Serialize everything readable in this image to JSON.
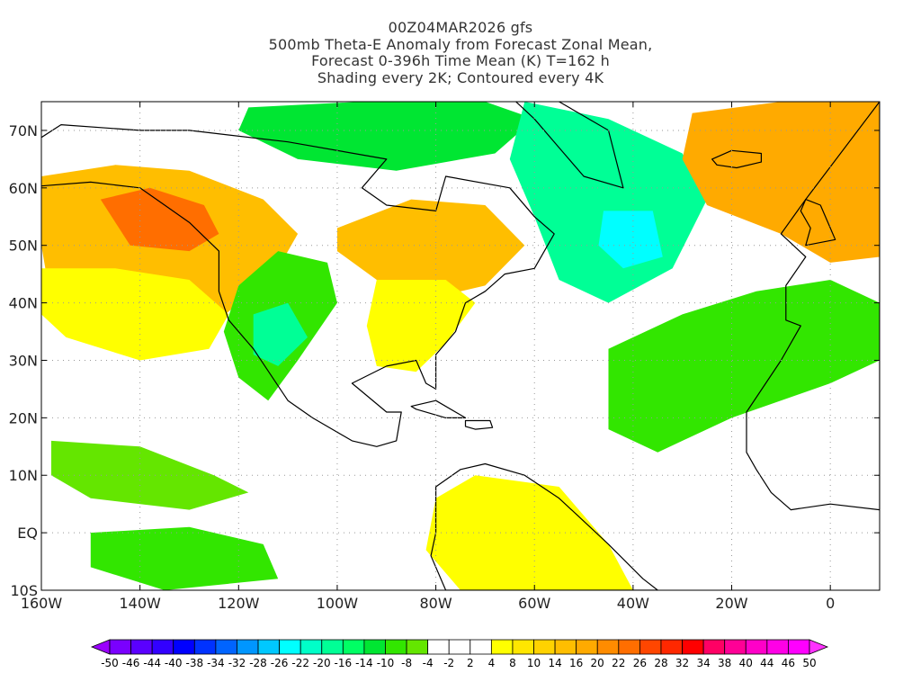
{
  "title": {
    "line1": "00Z04MAR2026 gfs",
    "line2": "500mb Theta-E Anomaly from Forecast Zonal Mean,",
    "line3": "Forecast 0-396h Time Mean (K) T=162 h",
    "line4": "Shading every 2K; Contoured every 4K"
  },
  "map": {
    "projection": "lat-lon",
    "lon_range": [
      -160,
      10
    ],
    "lat_range": [
      -10,
      75
    ],
    "lat_ticks": [
      {
        "lat": 70,
        "label": "70N"
      },
      {
        "lat": 60,
        "label": "60N"
      },
      {
        "lat": 50,
        "label": "50N"
      },
      {
        "lat": 40,
        "label": "40N"
      },
      {
        "lat": 30,
        "label": "30N"
      },
      {
        "lat": 20,
        "label": "20N"
      },
      {
        "lat": 10,
        "label": "10N"
      },
      {
        "lat": 0,
        "label": "EQ"
      },
      {
        "lat": -10,
        "label": "10S"
      }
    ],
    "lon_ticks": [
      {
        "lon": -160,
        "label": "160W"
      },
      {
        "lon": -140,
        "label": "140W"
      },
      {
        "lon": -120,
        "label": "120W"
      },
      {
        "lon": -100,
        "label": "100W"
      },
      {
        "lon": -80,
        "label": "80W"
      },
      {
        "lon": -60,
        "label": "60W"
      },
      {
        "lon": -40,
        "label": "40W"
      },
      {
        "lon": -20,
        "label": "20W"
      },
      {
        "lon": 0,
        "label": "0"
      }
    ],
    "grid": "dotted"
  },
  "colorbar": {
    "labels": [
      "-50",
      "-46",
      "-44",
      "-40",
      "-38",
      "-34",
      "-32",
      "-28",
      "-26",
      "-22",
      "-20",
      "-16",
      "-14",
      "-10",
      "-8",
      "-4",
      "-2",
      "2",
      "4",
      "8",
      "10",
      "14",
      "16",
      "20",
      "22",
      "26",
      "28",
      "32",
      "34",
      "38",
      "40",
      "44",
      "46",
      "50"
    ],
    "colors": [
      "#9a00ff",
      "#7a00ff",
      "#5a00ff",
      "#3200ff",
      "#0000ff",
      "#0032ff",
      "#0064ff",
      "#0096ff",
      "#00c8ff",
      "#00ffff",
      "#00ffc8",
      "#00ff96",
      "#00ff64",
      "#00e632",
      "#32e600",
      "#64e600",
      "#ffffff",
      "#ffffff",
      "#ffffff",
      "#ffff00",
      "#ffe600",
      "#ffd200",
      "#ffbe00",
      "#ffaa00",
      "#ff8c00",
      "#ff6e00",
      "#ff4600",
      "#ff2800",
      "#ff0000",
      "#ff0064",
      "#ff0096",
      "#ff00c8",
      "#ff00e6",
      "#ff00ff",
      "#ff32ff"
    ]
  },
  "anomaly_regions": [
    {
      "name": "ne-pacific-warm",
      "value": 16,
      "color": "#ffbe00",
      "polygon": [
        [
          -160,
          62
        ],
        [
          -145,
          64
        ],
        [
          -130,
          63
        ],
        [
          -115,
          58
        ],
        [
          -108,
          52
        ],
        [
          -112,
          46
        ],
        [
          -120,
          40
        ],
        [
          -128,
          34
        ],
        [
          -145,
          32
        ],
        [
          -158,
          40
        ],
        [
          -160,
          50
        ]
      ]
    },
    {
      "name": "ne-pacific-core",
      "value": 24,
      "color": "#ff6e00",
      "polygon": [
        [
          -148,
          58
        ],
        [
          -138,
          60
        ],
        [
          -127,
          57
        ],
        [
          -124,
          52
        ],
        [
          -130,
          49
        ],
        [
          -142,
          50
        ]
      ]
    },
    {
      "name": "subtropical-pacific-warm",
      "value": 8,
      "color": "#ffff00",
      "polygon": [
        [
          -160,
          46
        ],
        [
          -145,
          46
        ],
        [
          -130,
          44
        ],
        [
          -122,
          38
        ],
        [
          -126,
          32
        ],
        [
          -140,
          30
        ],
        [
          -155,
          34
        ],
        [
          -160,
          38
        ]
      ]
    },
    {
      "name": "arctic-canada-cool",
      "value": -10,
      "color": "#00e632",
      "polygon": [
        [
          -118,
          74
        ],
        [
          -95,
          75
        ],
        [
          -70,
          75
        ],
        [
          -60,
          72
        ],
        [
          -68,
          66
        ],
        [
          -88,
          63
        ],
        [
          -108,
          65
        ],
        [
          -120,
          70
        ]
      ]
    },
    {
      "name": "western-us-cool",
      "value": -12,
      "color": "#32e600",
      "polygon": [
        [
          -120,
          43
        ],
        [
          -112,
          49
        ],
        [
          -102,
          47
        ],
        [
          -100,
          40
        ],
        [
          -108,
          30
        ],
        [
          -114,
          23
        ],
        [
          -120,
          27
        ],
        [
          -123,
          35
        ]
      ]
    },
    {
      "name": "western-us-core",
      "value": -18,
      "color": "#00ff96",
      "polygon": [
        [
          -117,
          38
        ],
        [
          -110,
          40
        ],
        [
          -106,
          34
        ],
        [
          -112,
          29
        ],
        [
          -117,
          31
        ]
      ]
    },
    {
      "name": "eastern-canada-warm",
      "value": 14,
      "color": "#ffbe00",
      "polygon": [
        [
          -100,
          53
        ],
        [
          -85,
          58
        ],
        [
          -70,
          57
        ],
        [
          -62,
          50
        ],
        [
          -70,
          43
        ],
        [
          -80,
          41
        ],
        [
          -92,
          44
        ],
        [
          -100,
          49
        ]
      ]
    },
    {
      "name": "eastern-us-warm",
      "value": 8,
      "color": "#ffff00",
      "polygon": [
        [
          -92,
          44
        ],
        [
          -78,
          44
        ],
        [
          -72,
          40
        ],
        [
          -78,
          33
        ],
        [
          -84,
          28
        ],
        [
          -92,
          29
        ],
        [
          -94,
          36
        ]
      ]
    },
    {
      "name": "north-atlantic-cool",
      "value": -16,
      "color": "#00ff96",
      "polygon": [
        [
          -62,
          75
        ],
        [
          -45,
          72
        ],
        [
          -30,
          66
        ],
        [
          -25,
          58
        ],
        [
          -32,
          46
        ],
        [
          -45,
          40
        ],
        [
          -55,
          44
        ],
        [
          -60,
          55
        ],
        [
          -65,
          65
        ]
      ]
    },
    {
      "name": "north-atlantic-core",
      "value": -22,
      "color": "#00ffff",
      "polygon": [
        [
          -46,
          56
        ],
        [
          -36,
          56
        ],
        [
          -34,
          48
        ],
        [
          -42,
          46
        ],
        [
          -47,
          50
        ]
      ]
    },
    {
      "name": "europe-warm",
      "value": 18,
      "color": "#ffaa00",
      "polygon": [
        [
          -28,
          73
        ],
        [
          -10,
          75
        ],
        [
          10,
          75
        ],
        [
          10,
          48
        ],
        [
          0,
          47
        ],
        [
          -10,
          52
        ],
        [
          -25,
          57
        ],
        [
          -30,
          65
        ]
      ]
    },
    {
      "name": "subtropical-atlantic-cool",
      "value": -8,
      "color": "#32e600",
      "polygon": [
        [
          -45,
          32
        ],
        [
          -30,
          38
        ],
        [
          -15,
          42
        ],
        [
          0,
          44
        ],
        [
          10,
          40
        ],
        [
          10,
          30
        ],
        [
          0,
          26
        ],
        [
          -20,
          20
        ],
        [
          -35,
          14
        ],
        [
          -45,
          18
        ]
      ]
    },
    {
      "name": "tropical-pacific-cool",
      "value": -6,
      "color": "#64e600",
      "polygon": [
        [
          -158,
          16
        ],
        [
          -140,
          15
        ],
        [
          -125,
          10
        ],
        [
          -118,
          7
        ],
        [
          -130,
          4
        ],
        [
          -150,
          6
        ],
        [
          -158,
          10
        ]
      ]
    },
    {
      "name": "south-america-warm",
      "value": 6,
      "color": "#ffff00",
      "polygon": [
        [
          -80,
          6
        ],
        [
          -72,
          10
        ],
        [
          -55,
          8
        ],
        [
          -45,
          -2
        ],
        [
          -40,
          -10
        ],
        [
          -75,
          -10
        ],
        [
          -82,
          -3
        ]
      ]
    },
    {
      "name": "tropical-pacific-south-cool",
      "value": -8,
      "color": "#32e600",
      "polygon": [
        [
          -150,
          0
        ],
        [
          -130,
          1
        ],
        [
          -115,
          -2
        ],
        [
          -112,
          -8
        ],
        [
          -135,
          -10
        ],
        [
          -150,
          -6
        ]
      ]
    }
  ],
  "coastlines": [
    {
      "name": "north-america",
      "polygon": [
        [
          -165,
          60
        ],
        [
          -150,
          61
        ],
        [
          -140,
          60
        ],
        [
          -135,
          57
        ],
        [
          -130,
          54
        ],
        [
          -124,
          49
        ],
        [
          -124,
          42
        ],
        [
          -122,
          37
        ],
        [
          -117,
          32
        ],
        [
          -110,
          23
        ],
        [
          -105,
          20
        ],
        [
          -97,
          16
        ],
        [
          -92,
          15
        ],
        [
          -88,
          16
        ],
        [
          -87,
          21
        ],
        [
          -90,
          21
        ],
        [
          -97,
          26
        ],
        [
          -90,
          29
        ],
        [
          -84,
          30
        ],
        [
          -82,
          26
        ],
        [
          -80,
          25
        ],
        [
          -80,
          31
        ],
        [
          -76,
          35
        ],
        [
          -74,
          40
        ],
        [
          -70,
          42
        ],
        [
          -66,
          45
        ],
        [
          -60,
          46
        ],
        [
          -56,
          52
        ],
        [
          -60,
          55
        ],
        [
          -65,
          60
        ],
        [
          -78,
          62
        ],
        [
          -80,
          56
        ],
        [
          -90,
          57
        ],
        [
          -95,
          60
        ],
        [
          -90,
          65
        ],
        [
          -110,
          68
        ],
        [
          -130,
          70
        ],
        [
          -140,
          70
        ],
        [
          -156,
          71
        ],
        [
          -165,
          66
        ]
      ]
    },
    {
      "name": "greenland",
      "polygon": [
        [
          -72,
          78
        ],
        [
          -55,
          75
        ],
        [
          -45,
          70
        ],
        [
          -42,
          60
        ],
        [
          -50,
          62
        ],
        [
          -55,
          67
        ],
        [
          -60,
          72
        ],
        [
          -65,
          76
        ]
      ]
    },
    {
      "name": "south-america",
      "polygon": [
        [
          -80,
          8
        ],
        [
          -75,
          11
        ],
        [
          -70,
          12
        ],
        [
          -62,
          10
        ],
        [
          -55,
          6
        ],
        [
          -50,
          2
        ],
        [
          -45,
          -2
        ],
        [
          -38,
          -8
        ],
        [
          -35,
          -10
        ],
        [
          -78,
          -10
        ],
        [
          -81,
          -4
        ],
        [
          -80,
          0
        ]
      ]
    },
    {
      "name": "europe-africa",
      "polygon": [
        [
          10,
          75
        ],
        [
          -5,
          58
        ],
        [
          -10,
          52
        ],
        [
          -5,
          48
        ],
        [
          -9,
          43
        ],
        [
          -9,
          37
        ],
        [
          -6,
          36
        ],
        [
          -10,
          30
        ],
        [
          -17,
          21
        ],
        [
          -17,
          14
        ],
        [
          -15,
          11
        ],
        [
          -12,
          7
        ],
        [
          -8,
          4
        ],
        [
          0,
          5
        ],
        [
          10,
          4
        ],
        [
          10,
          36
        ],
        [
          10,
          45
        ]
      ]
    },
    {
      "name": "iceland",
      "polygon": [
        [
          -24,
          65
        ],
        [
          -20,
          66.5
        ],
        [
          -14,
          66
        ],
        [
          -14,
          64.5
        ],
        [
          -19,
          63.5
        ],
        [
          -23,
          64
        ]
      ]
    },
    {
      "name": "great-britain",
      "polygon": [
        [
          -5,
          58
        ],
        [
          -2,
          57
        ],
        [
          0,
          53
        ],
        [
          1,
          51
        ],
        [
          -5,
          50
        ],
        [
          -4,
          53
        ],
        [
          -6,
          56
        ]
      ]
    },
    {
      "name": "cuba",
      "polygon": [
        [
          -85,
          22
        ],
        [
          -80,
          23
        ],
        [
          -74,
          20
        ],
        [
          -78,
          20
        ],
        [
          -84,
          21.5
        ]
      ]
    },
    {
      "name": "hispaniola",
      "polygon": [
        [
          -74,
          19.5
        ],
        [
          -69,
          19.5
        ],
        [
          -68.5,
          18.3
        ],
        [
          -72,
          18
        ],
        [
          -74,
          18.5
        ]
      ]
    }
  ]
}
